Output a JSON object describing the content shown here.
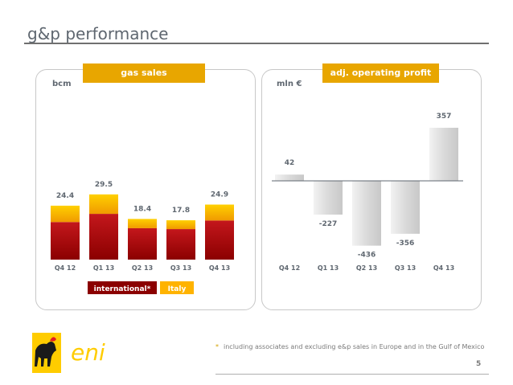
{
  "page": {
    "title": "g&p performance",
    "footnote_star": "*",
    "footnote": "including associates and excluding e&p sales in Europe and in the Gulf of Mexico",
    "page_number": "5",
    "logo_text": "eni"
  },
  "colors": {
    "header_fill": "#e8a600",
    "international": "#8b0000",
    "italy": "#ffb300",
    "negative_bar": "#dcdcdc"
  },
  "chart_data": [
    {
      "type": "bar",
      "title": "gas sales",
      "ylabel": "bcm",
      "categories": [
        "Q4 12",
        "Q1 13",
        "Q2 13",
        "Q3 13",
        "Q4 13"
      ],
      "totals": [
        24.4,
        29.5,
        18.4,
        17.8,
        24.9
      ],
      "total_labels": [
        "24.4",
        "29.5",
        "18.4",
        "17.8",
        "24.9"
      ],
      "series": [
        {
          "name": "international*",
          "color": "#8b0000",
          "values": [
            17.0,
            20.7,
            14.2,
            13.8,
            17.7
          ]
        },
        {
          "name": "Italy",
          "color": "#ffb300",
          "values": [
            7.4,
            8.8,
            4.2,
            4.0,
            7.2
          ]
        }
      ],
      "ylim": [
        0,
        32
      ],
      "stacked": true,
      "legend_position": "bottom",
      "grid": false
    },
    {
      "type": "bar",
      "title": "adj. operating profit",
      "ylabel": "mln €",
      "categories": [
        "Q4 12",
        "Q1 13",
        "Q2 13",
        "Q3 13",
        "Q4 13"
      ],
      "values": [
        42,
        -227,
        -436,
        -356,
        357
      ],
      "value_labels": [
        "42",
        "-227",
        "-436",
        "-356",
        "357"
      ],
      "ylim": [
        -450,
        400
      ],
      "grid": false
    }
  ]
}
